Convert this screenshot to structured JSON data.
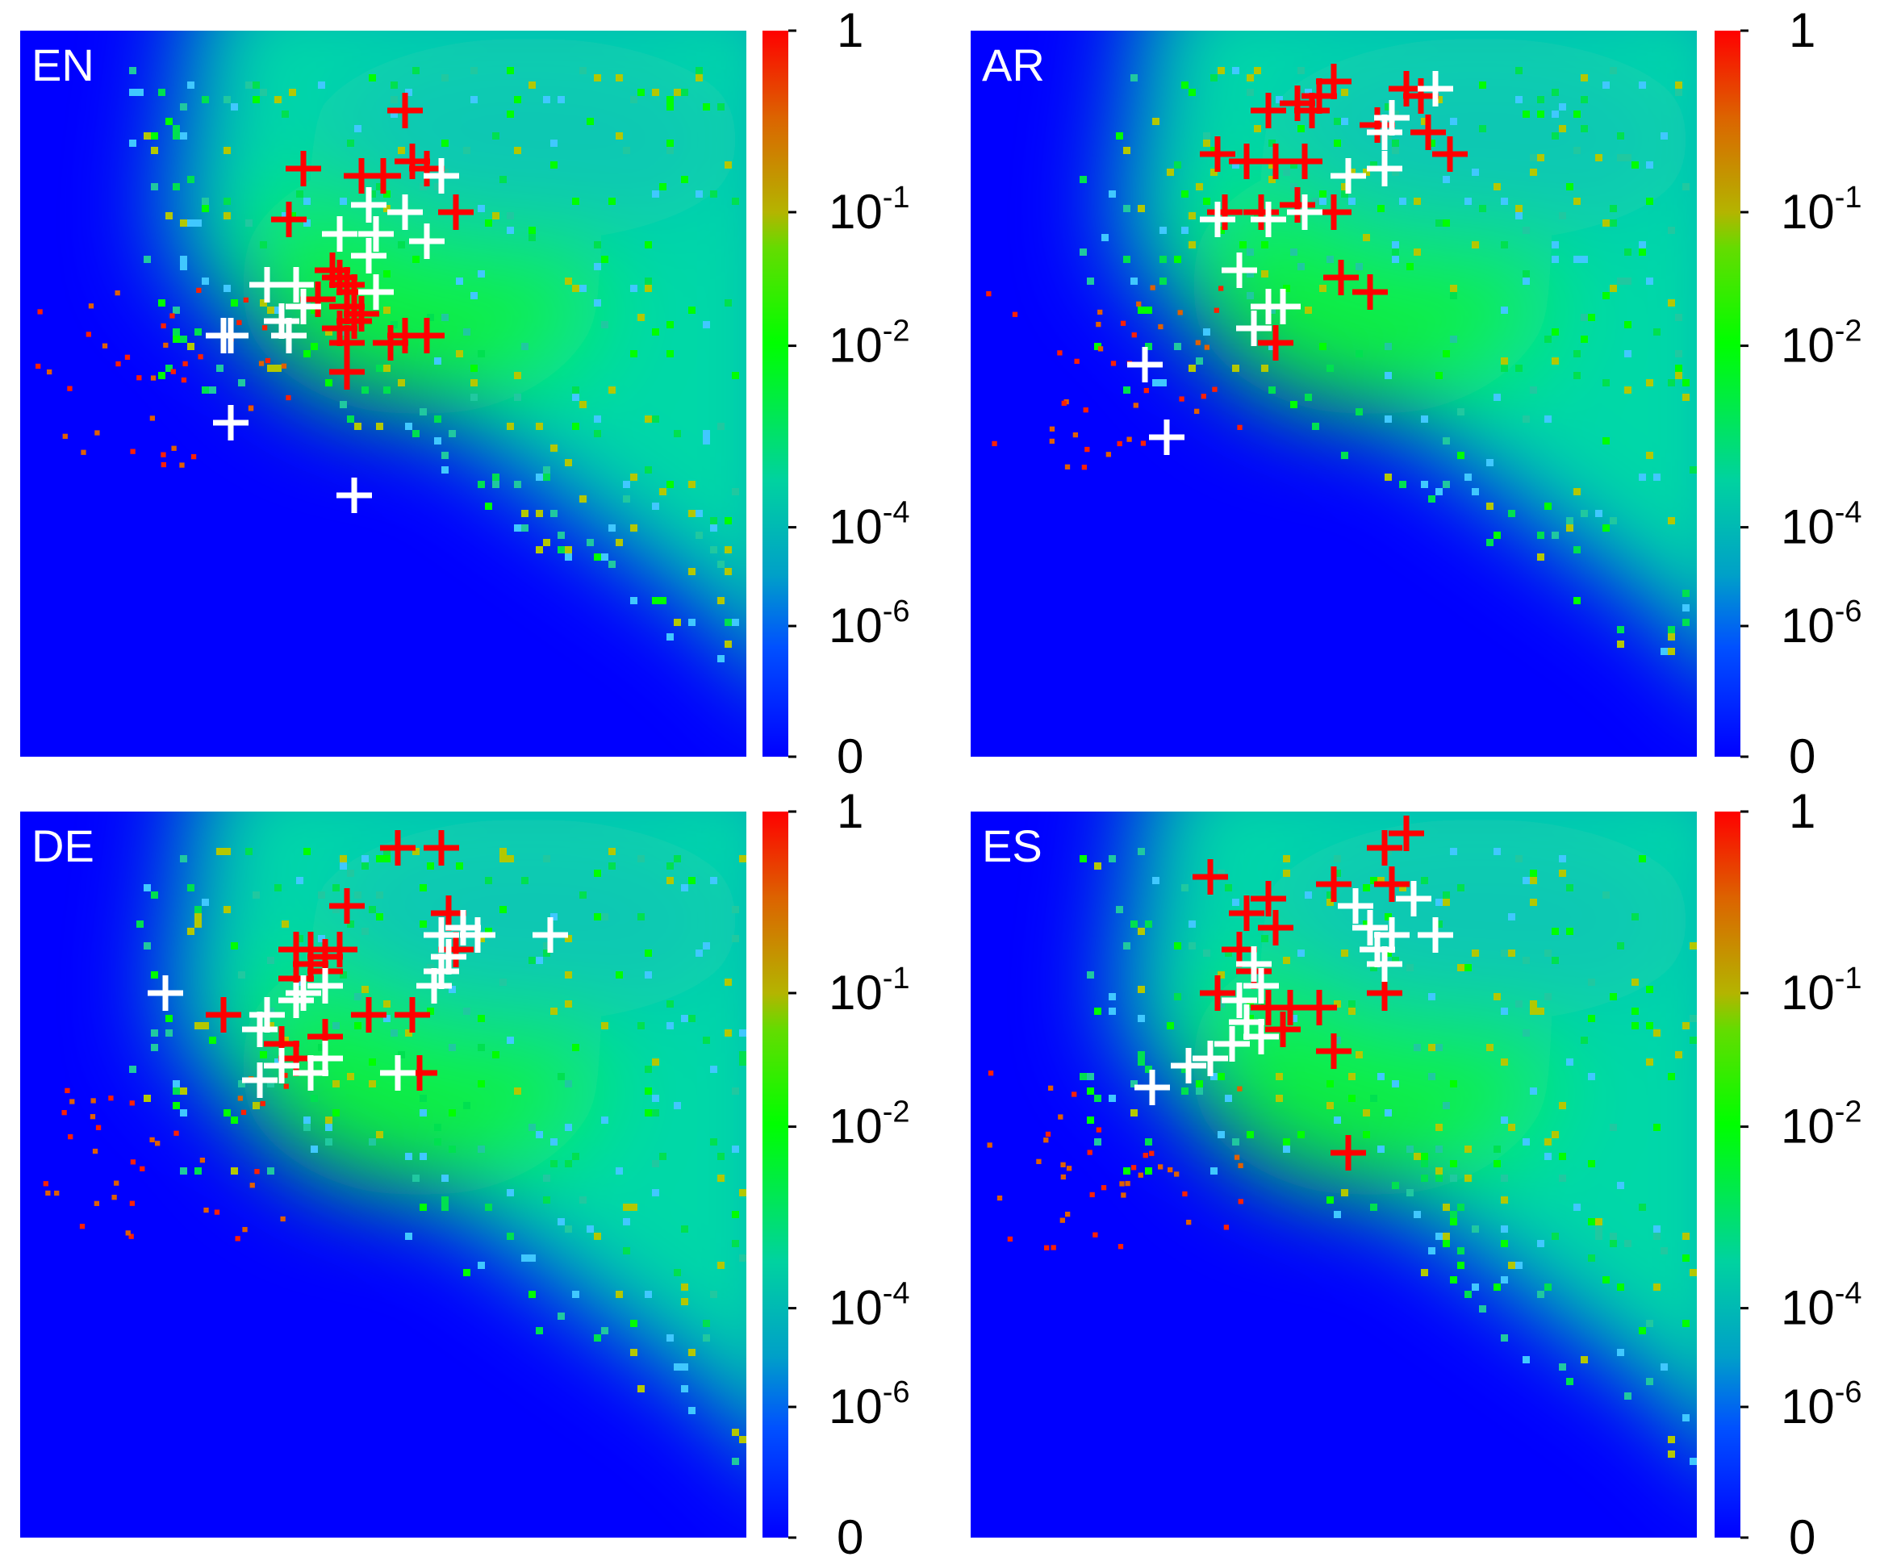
{
  "chart_data": [
    {
      "type": "heatmap",
      "panel_label": "EN",
      "colorbar": {
        "ticks": [
          "1",
          "10^-1",
          "10^-2",
          "10^-4",
          "10^-6",
          "0"
        ],
        "colormap": [
          "#0000ff",
          "#00c8b4",
          "#00ff00",
          "#c8b400",
          "#ff0000"
        ]
      },
      "axes": {
        "x_ticks": "none",
        "y_ticks": "none",
        "grid": false
      },
      "red_markers": [
        [
          0.53,
          0.11
        ],
        [
          0.39,
          0.19
        ],
        [
          0.47,
          0.2
        ],
        [
          0.5,
          0.2
        ],
        [
          0.54,
          0.18
        ],
        [
          0.56,
          0.19
        ],
        [
          0.37,
          0.26
        ],
        [
          0.6,
          0.25
        ],
        [
          0.43,
          0.33
        ],
        [
          0.44,
          0.34
        ],
        [
          0.45,
          0.35
        ],
        [
          0.46,
          0.36
        ],
        [
          0.41,
          0.37
        ],
        [
          0.45,
          0.38
        ],
        [
          0.47,
          0.39
        ],
        [
          0.46,
          0.4
        ],
        [
          0.44,
          0.41
        ],
        [
          0.53,
          0.42
        ],
        [
          0.56,
          0.42
        ],
        [
          0.45,
          0.43
        ],
        [
          0.51,
          0.43
        ],
        [
          0.45,
          0.47
        ]
      ],
      "white_markers": [
        [
          0.58,
          0.2
        ],
        [
          0.48,
          0.24
        ],
        [
          0.53,
          0.25
        ],
        [
          0.44,
          0.28
        ],
        [
          0.49,
          0.28
        ],
        [
          0.48,
          0.31
        ],
        [
          0.56,
          0.29
        ],
        [
          0.49,
          0.36
        ],
        [
          0.34,
          0.35
        ],
        [
          0.38,
          0.35
        ],
        [
          0.39,
          0.38
        ],
        [
          0.36,
          0.4
        ],
        [
          0.28,
          0.42
        ],
        [
          0.29,
          0.42
        ],
        [
          0.37,
          0.42
        ],
        [
          0.29,
          0.54
        ],
        [
          0.46,
          0.64
        ]
      ]
    },
    {
      "type": "heatmap",
      "panel_label": "AR",
      "colorbar": {
        "ticks": [
          "1",
          "10^-1",
          "10^-2",
          "10^-4",
          "10^-6",
          "0"
        ],
        "colormap": [
          "#0000ff",
          "#00c8b4",
          "#00ff00",
          "#c8b400",
          "#ff0000"
        ]
      },
      "axes": {
        "x_ticks": "none",
        "y_ticks": "none",
        "grid": false
      },
      "red_markers": [
        [
          0.5,
          0.07
        ],
        [
          0.48,
          0.09
        ],
        [
          0.45,
          0.1
        ],
        [
          0.47,
          0.11
        ],
        [
          0.41,
          0.11
        ],
        [
          0.6,
          0.08
        ],
        [
          0.62,
          0.09
        ],
        [
          0.56,
          0.13
        ],
        [
          0.63,
          0.14
        ],
        [
          0.66,
          0.17
        ],
        [
          0.34,
          0.17
        ],
        [
          0.38,
          0.18
        ],
        [
          0.42,
          0.18
        ],
        [
          0.46,
          0.18
        ],
        [
          0.35,
          0.25
        ],
        [
          0.4,
          0.25
        ],
        [
          0.45,
          0.24
        ],
        [
          0.5,
          0.25
        ],
        [
          0.51,
          0.34
        ],
        [
          0.55,
          0.36
        ],
        [
          0.42,
          0.43
        ]
      ],
      "white_markers": [
        [
          0.64,
          0.08
        ],
        [
          0.58,
          0.12
        ],
        [
          0.57,
          0.14
        ],
        [
          0.52,
          0.2
        ],
        [
          0.57,
          0.19
        ],
        [
          0.34,
          0.26
        ],
        [
          0.41,
          0.26
        ],
        [
          0.46,
          0.25
        ],
        [
          0.37,
          0.33
        ],
        [
          0.41,
          0.38
        ],
        [
          0.43,
          0.38
        ],
        [
          0.39,
          0.41
        ],
        [
          0.24,
          0.46
        ],
        [
          0.27,
          0.56
        ]
      ]
    },
    {
      "type": "heatmap",
      "panel_label": "DE",
      "colorbar": {
        "ticks": [
          "1",
          "10^-1",
          "10^-2",
          "10^-4",
          "10^-6",
          "0"
        ],
        "colormap": [
          "#0000ff",
          "#00c8b4",
          "#00ff00",
          "#c8b400",
          "#ff0000"
        ]
      },
      "axes": {
        "x_ticks": "none",
        "y_ticks": "none",
        "grid": false
      },
      "red_markers": [
        [
          0.52,
          0.05
        ],
        [
          0.58,
          0.05
        ],
        [
          0.45,
          0.13
        ],
        [
          0.59,
          0.14
        ],
        [
          0.38,
          0.19
        ],
        [
          0.4,
          0.19
        ],
        [
          0.42,
          0.2
        ],
        [
          0.44,
          0.19
        ],
        [
          0.4,
          0.21
        ],
        [
          0.42,
          0.22
        ],
        [
          0.38,
          0.23
        ],
        [
          0.6,
          0.19
        ],
        [
          0.28,
          0.28
        ],
        [
          0.48,
          0.28
        ],
        [
          0.54,
          0.28
        ],
        [
          0.42,
          0.31
        ],
        [
          0.36,
          0.32
        ],
        [
          0.38,
          0.34
        ],
        [
          0.55,
          0.36
        ]
      ],
      "white_markers": [
        [
          0.58,
          0.17
        ],
        [
          0.61,
          0.16
        ],
        [
          0.63,
          0.17
        ],
        [
          0.73,
          0.17
        ],
        [
          0.59,
          0.2
        ],
        [
          0.58,
          0.22
        ],
        [
          0.57,
          0.24
        ],
        [
          0.42,
          0.24
        ],
        [
          0.39,
          0.25
        ],
        [
          0.38,
          0.26
        ],
        [
          0.2,
          0.25
        ],
        [
          0.34,
          0.28
        ],
        [
          0.33,
          0.3
        ],
        [
          0.36,
          0.35
        ],
        [
          0.42,
          0.34
        ],
        [
          0.4,
          0.36
        ],
        [
          0.33,
          0.37
        ],
        [
          0.52,
          0.36
        ]
      ]
    },
    {
      "type": "heatmap",
      "panel_label": "ES",
      "colorbar": {
        "ticks": [
          "1",
          "10^-1",
          "10^-2",
          "10^-4",
          "10^-6",
          "0"
        ],
        "colormap": [
          "#0000ff",
          "#00c8b4",
          "#00ff00",
          "#c8b400",
          "#ff0000"
        ]
      },
      "axes": {
        "x_ticks": "none",
        "y_ticks": "none",
        "grid": false
      },
      "red_markers": [
        [
          0.6,
          0.03
        ],
        [
          0.57,
          0.05
        ],
        [
          0.5,
          0.1
        ],
        [
          0.58,
          0.1
        ],
        [
          0.33,
          0.09
        ],
        [
          0.41,
          0.12
        ],
        [
          0.38,
          0.14
        ],
        [
          0.42,
          0.16
        ],
        [
          0.37,
          0.19
        ],
        [
          0.39,
          0.22
        ],
        [
          0.34,
          0.25
        ],
        [
          0.41,
          0.27
        ],
        [
          0.44,
          0.27
        ],
        [
          0.48,
          0.27
        ],
        [
          0.43,
          0.3
        ],
        [
          0.5,
          0.33
        ],
        [
          0.57,
          0.25
        ],
        [
          0.52,
          0.47
        ]
      ],
      "white_markers": [
        [
          0.53,
          0.13
        ],
        [
          0.61,
          0.12
        ],
        [
          0.55,
          0.16
        ],
        [
          0.58,
          0.17
        ],
        [
          0.64,
          0.17
        ],
        [
          0.56,
          0.19
        ],
        [
          0.57,
          0.21
        ],
        [
          0.39,
          0.21
        ],
        [
          0.4,
          0.24
        ],
        [
          0.37,
          0.26
        ],
        [
          0.38,
          0.29
        ],
        [
          0.4,
          0.31
        ],
        [
          0.36,
          0.32
        ],
        [
          0.33,
          0.34
        ],
        [
          0.3,
          0.35
        ],
        [
          0.25,
          0.38
        ]
      ]
    }
  ]
}
